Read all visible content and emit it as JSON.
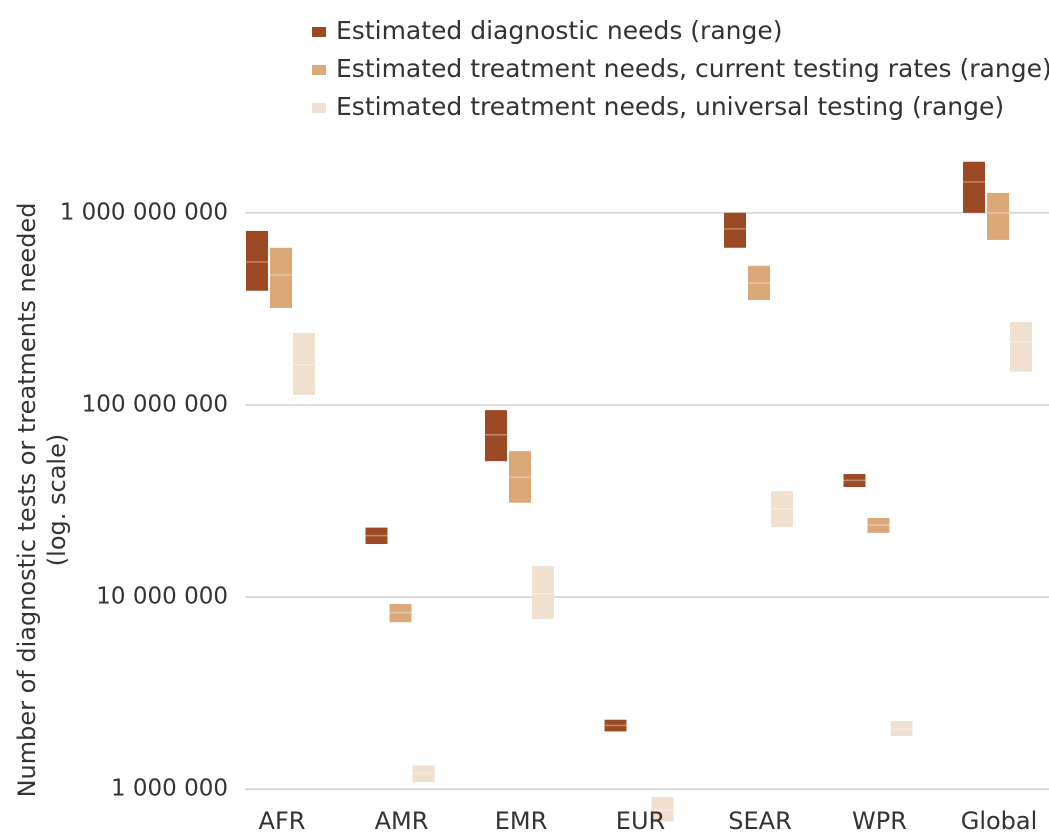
{
  "chart_data": {
    "type": "range_bar",
    "y_label": [
      "Number of diagnostic tests or treatments needed",
      "(log. scale)"
    ],
    "log_scale": true,
    "grid": true,
    "categories": [
      "AFR",
      "AMR",
      "EMR",
      "EUR",
      "SEAR",
      "WPR",
      "Global"
    ],
    "series": [
      {
        "name": "Estimated diagnostic needs (range)",
        "color": "#9c4a24",
        "low": [
          393000000,
          18900000,
          51000000,
          2000000,
          658000000,
          37400000,
          1000000000
        ],
        "high": [
          805000000,
          23000000,
          94000000,
          2300000,
          1000000000,
          43700000,
          1845000000
        ],
        "values": [
          556000000,
          20900000,
          70000000,
          2150000,
          825000000,
          40500000,
          1450000000
        ]
      },
      {
        "name": "Estimated treatment needs, current testing rates (range)",
        "color": "#dba878",
        "low": [
          320000000,
          7400000,
          31000000,
          null,
          352000000,
          21600000,
          723000000
        ],
        "high": [
          658000000,
          9200000,
          57500000,
          null,
          530000000,
          25800000,
          1270000000
        ],
        "values": [
          475000000,
          8300000,
          42000000,
          null,
          431000000,
          23700000,
          1000000000
        ]
      },
      {
        "name": "Estimated treatment needs, universal testing (range)",
        "color": "#efe0cf",
        "low": [
          113000000,
          1090000,
          7700000,
          680000,
          23200000,
          1890000,
          149000000
        ],
        "high": [
          237000000,
          1330000,
          14500000,
          910000,
          35600000,
          2260000,
          270000000
        ],
        "values": [
          162000000,
          1210000,
          10400000,
          780000,
          28800000,
          2050000,
          213000000
        ]
      }
    ],
    "ylim": [
      700000,
      2000000000
    ],
    "yticks": [
      {
        "value": 1000000,
        "label": "1 000 000"
      },
      {
        "value": 10000000,
        "label": "10 000 000"
      },
      {
        "value": 100000000,
        "label": "100 000 000"
      },
      {
        "value": 1000000000,
        "label": "1 000 000 000"
      }
    ]
  }
}
